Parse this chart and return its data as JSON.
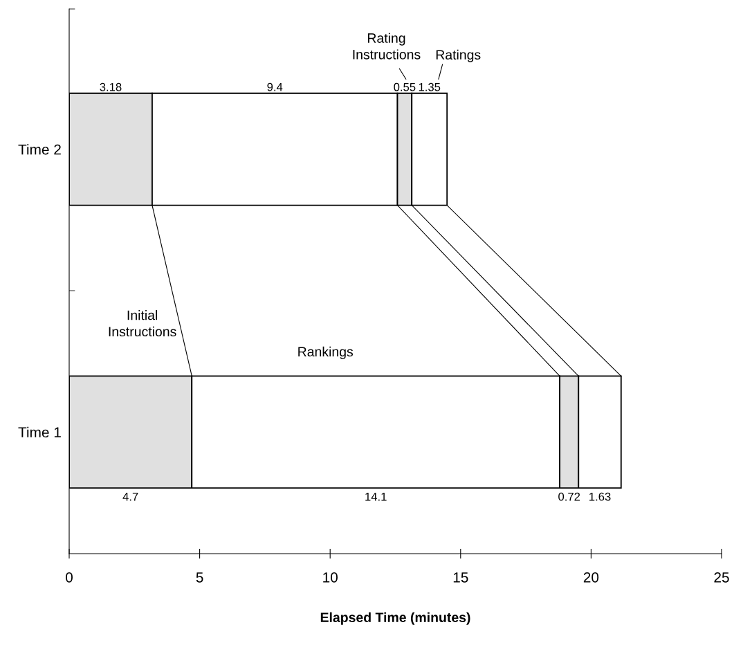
{
  "chart_data": {
    "type": "bar",
    "orientation": "horizontal",
    "stacked": true,
    "categories": [
      "Time 2",
      "Time 1"
    ],
    "series": [
      {
        "name": "Initial Instructions",
        "color": "#e0e0e0",
        "values": [
          3.18,
          4.7
        ]
      },
      {
        "name": "Rankings",
        "color": "#ffffff",
        "values": [
          9.4,
          14.1
        ]
      },
      {
        "name": "Rating Instructions",
        "color": "#e0e0e0",
        "values": [
          0.55,
          0.72
        ]
      },
      {
        "name": "Ratings",
        "color": "#ffffff",
        "values": [
          1.35,
          1.63
        ]
      }
    ],
    "xlim": [
      0,
      25
    ],
    "xticks": [
      0,
      5,
      10,
      15,
      20,
      25
    ],
    "xlabel": "Elapsed Time (minutes)",
    "data_labels": true,
    "grid": false,
    "legend": false
  }
}
